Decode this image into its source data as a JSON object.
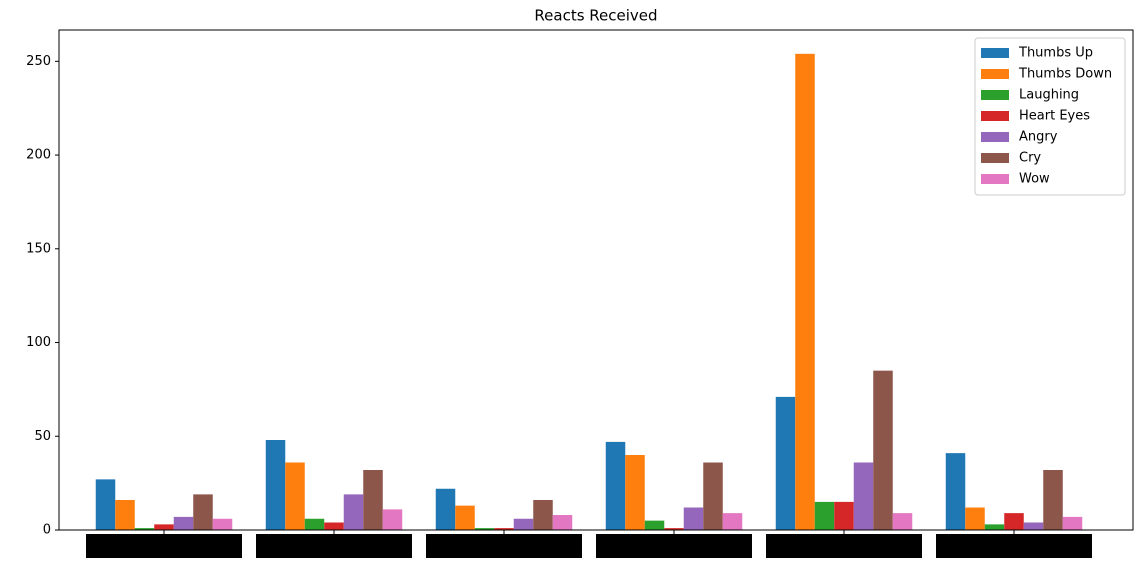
{
  "chart_data": {
    "type": "grouped-bar",
    "title": "Reacts Received",
    "categories": [
      null,
      null,
      null,
      null,
      null,
      null
    ],
    "series": [
      {
        "name": "Thumbs Up",
        "color": "#1f77b4",
        "values": [
          27,
          48,
          22,
          47,
          71,
          41
        ]
      },
      {
        "name": "Thumbs Down",
        "color": "#ff7f0e",
        "values": [
          16,
          36,
          13,
          40,
          254,
          12
        ]
      },
      {
        "name": "Laughing",
        "color": "#2ca02c",
        "values": [
          1,
          6,
          1,
          5,
          15,
          3
        ]
      },
      {
        "name": "Heart Eyes",
        "color": "#d62728",
        "values": [
          3,
          4,
          1,
          1,
          15,
          9
        ]
      },
      {
        "name": "Angry",
        "color": "#9467bd",
        "values": [
          7,
          19,
          6,
          12,
          36,
          4
        ]
      },
      {
        "name": "Cry",
        "color": "#8c564b",
        "values": [
          19,
          32,
          16,
          36,
          85,
          32
        ]
      },
      {
        "name": "Wow",
        "color": "#e377c2",
        "values": [
          6,
          11,
          8,
          9,
          9,
          7
        ]
      }
    ],
    "ylim": [
      0,
      266.7
    ],
    "yticks": [
      0,
      50,
      100,
      150,
      200,
      250
    ],
    "legend": "upper right"
  }
}
